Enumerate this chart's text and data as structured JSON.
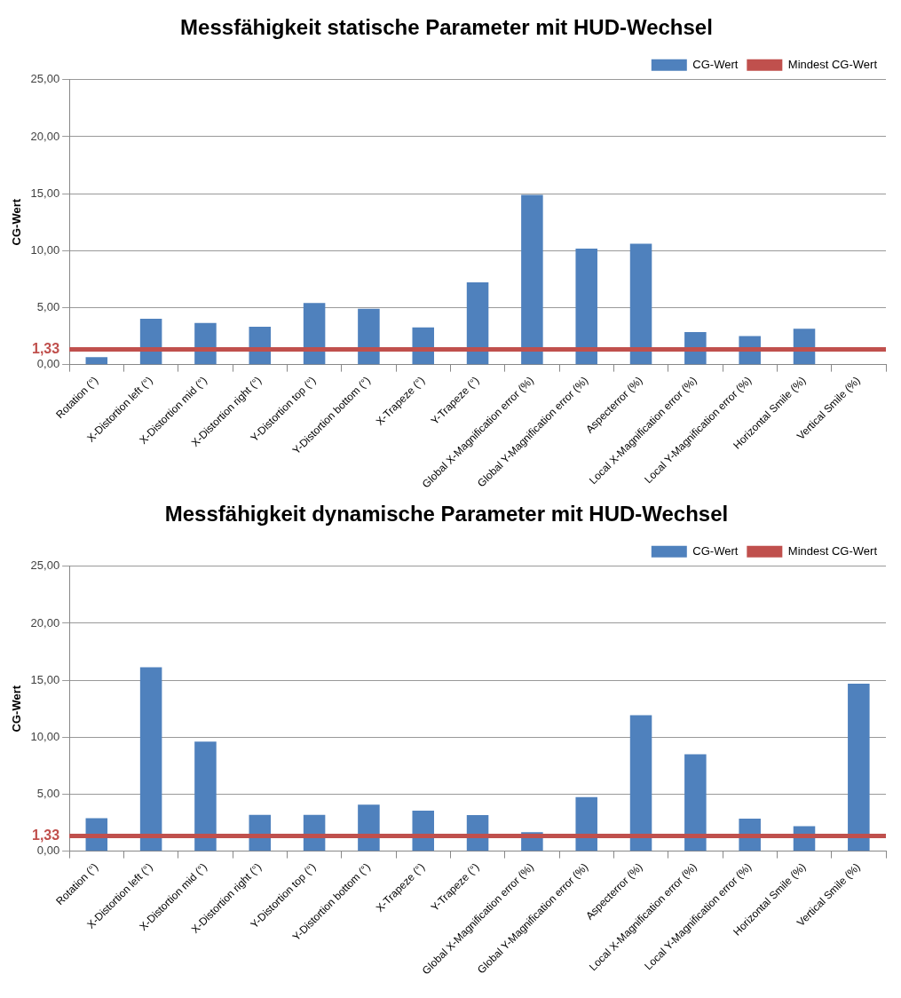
{
  "chart_data": [
    {
      "type": "bar",
      "title": "Messfähigkeit statische Parameter mit HUD-Wechsel",
      "ylabel": "CG-Wert",
      "categories": [
        "Rotation (°)",
        "X-Distortion left (°)",
        "X-Distortion mid (°)",
        "X-Distortion right (°)",
        "Y-Distortion top (°)",
        "Y-Distortion bottom (°)",
        "X-Trapeze (°)",
        "Y-Trapeze (°)",
        "Global X-Magnification error (%)",
        "Global Y-Magnification error (%)",
        "Aspecterror (%)",
        "Local X-Magnification error (%)",
        "Local Y-Magnification error (%)",
        "Horizontal Smile (%)",
        "Vertical Smile (%)"
      ],
      "series": [
        {
          "name": "CG-Wert",
          "color": "#4f81bd",
          "values": [
            0.66,
            4.03,
            3.66,
            3.32,
            5.41,
            4.89,
            3.27,
            7.22,
            14.9,
            10.17,
            10.6,
            2.85,
            2.5,
            3.14,
            null
          ]
        }
      ],
      "ylim": [
        0,
        25
      ],
      "yticks": [
        {
          "value": 0,
          "label": "0,00"
        },
        {
          "value": 1.33,
          "label": "1,33"
        },
        {
          "value": 5,
          "label": "5,00"
        },
        {
          "value": 10,
          "label": "10,00"
        },
        {
          "value": 15,
          "label": "15,00"
        },
        {
          "value": 20,
          "label": "20,00"
        },
        {
          "value": 25,
          "label": "25,00"
        }
      ],
      "ref_lines": [
        {
          "axis": "y",
          "value": 1.33,
          "label": "Mindest CG-Wert",
          "color": "#c0504d"
        }
      ],
      "grid": "y",
      "legend": "top right"
    },
    {
      "type": "bar",
      "title": "Messfähigkeit dynamische Parameter mit HUD-Wechsel",
      "ylabel": "CG-Wert",
      "categories": [
        "Rotation (°)",
        "X-Distortion left (°)",
        "X-Distortion mid (°)",
        "X-Distortion right (°)",
        "Y-Distortion top (°)",
        "Y-Distortion bottom (°)",
        "X-Trapeze (°)",
        "Y-Trapeze (°)",
        "Global X-Magnification error (%)",
        "Global Y-Magnification error (%)",
        "Aspecterror (%)",
        "Local X-Magnification error (%)",
        "Local Y-Magnification error (%)",
        "Horizontal Smile (%)",
        "Vertical Smile (%)"
      ],
      "series": [
        {
          "name": "CG-Wert",
          "color": "#4f81bd",
          "values": [
            2.9,
            16.14,
            9.61,
            3.19,
            3.19,
            4.09,
            3.55,
            3.16,
            1.66,
            4.74,
            11.94,
            8.5,
            2.85,
            2.2,
            14.69
          ]
        }
      ],
      "ylim": [
        0,
        25
      ],
      "yticks": [
        {
          "value": 0,
          "label": "0,00"
        },
        {
          "value": 1.33,
          "label": "1,33"
        },
        {
          "value": 5,
          "label": "5,00"
        },
        {
          "value": 10,
          "label": "10,00"
        },
        {
          "value": 15,
          "label": "15,00"
        },
        {
          "value": 20,
          "label": "20,00"
        },
        {
          "value": 25,
          "label": "25,00"
        }
      ],
      "ref_lines": [
        {
          "axis": "y",
          "value": 1.33,
          "label": "Mindest CG-Wert",
          "color": "#c0504d"
        }
      ],
      "grid": "y",
      "legend": "top right"
    }
  ]
}
